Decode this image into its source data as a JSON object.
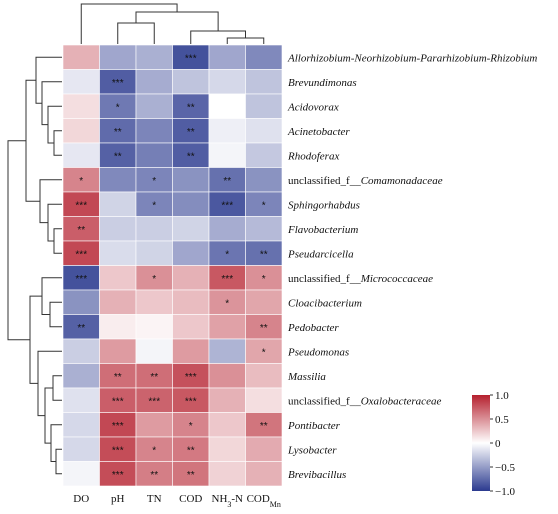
{
  "chart_data": {
    "type": "heatmap",
    "title": "",
    "columns": [
      "DO",
      "pH",
      "TN",
      "COD",
      "NH3-N",
      "CODMn"
    ],
    "column_labels": [
      {
        "main": "DO",
        "sub": "",
        "sup": ""
      },
      {
        "main": "pH",
        "sub": "",
        "sup": ""
      },
      {
        "main": "TN",
        "sub": "",
        "sup": ""
      },
      {
        "main": "COD",
        "sub": "",
        "sup": ""
      },
      {
        "main": "NH",
        "sub": "3",
        "after": "-N"
      },
      {
        "main": "COD",
        "sub": "Mn",
        "after": ""
      }
    ],
    "rows": [
      {
        "name": "Allorhizobium-Neorhizobium-Pararhizobium-Rhizobium",
        "italic": true,
        "prefix": ""
      },
      {
        "name": "Brevundimonas",
        "italic": true,
        "prefix": ""
      },
      {
        "name": "Acidovorax",
        "italic": true,
        "prefix": ""
      },
      {
        "name": "Acinetobacter",
        "italic": true,
        "prefix": ""
      },
      {
        "name": "Rhodoferax",
        "italic": true,
        "prefix": ""
      },
      {
        "name": "Comamonadaceae",
        "italic": true,
        "prefix": "unclassified_f__"
      },
      {
        "name": "Sphingorhabdus",
        "italic": true,
        "prefix": ""
      },
      {
        "name": "Flavobacterium",
        "italic": true,
        "prefix": ""
      },
      {
        "name": "Pseudarcicella",
        "italic": true,
        "prefix": ""
      },
      {
        "name": "Micrococcaceae",
        "italic": true,
        "prefix": "unclassified_f__"
      },
      {
        "name": "Cloacibacterium",
        "italic": true,
        "prefix": ""
      },
      {
        "name": "Pedobacter",
        "italic": true,
        "prefix": ""
      },
      {
        "name": "Pseudomonas",
        "italic": true,
        "prefix": ""
      },
      {
        "name": "Massilia",
        "italic": true,
        "prefix": ""
      },
      {
        "name": "Oxalobacteraceae",
        "italic": true,
        "prefix": "unclassified_f__"
      },
      {
        "name": "Pontibacter",
        "italic": true,
        "prefix": ""
      },
      {
        "name": "Lysobacter",
        "italic": true,
        "prefix": ""
      },
      {
        "name": "Brevibacillus",
        "italic": true,
        "prefix": ""
      }
    ],
    "values": [
      [
        0.35,
        -0.45,
        -0.4,
        -0.88,
        -0.45,
        -0.6
      ],
      [
        -0.12,
        -0.82,
        -0.42,
        -0.3,
        -0.2,
        -0.3
      ],
      [
        0.15,
        -0.68,
        -0.4,
        -0.78,
        0.0,
        -0.3
      ],
      [
        0.18,
        -0.75,
        -0.62,
        -0.82,
        -0.08,
        -0.15
      ],
      [
        -0.12,
        -0.8,
        -0.65,
        -0.82,
        -0.05,
        -0.28
      ],
      [
        0.55,
        -0.6,
        -0.62,
        -0.55,
        -0.72,
        -0.55
      ],
      [
        0.82,
        -0.22,
        -0.62,
        -0.58,
        -0.85,
        -0.62
      ],
      [
        0.72,
        -0.25,
        -0.25,
        -0.22,
        -0.42,
        -0.35
      ],
      [
        0.82,
        -0.18,
        -0.22,
        -0.45,
        -0.7,
        -0.72
      ],
      [
        -0.88,
        0.25,
        0.5,
        0.35,
        0.75,
        0.5
      ],
      [
        -0.55,
        0.35,
        0.25,
        0.3,
        0.48,
        0.4
      ],
      [
        -0.8,
        0.08,
        0.05,
        0.25,
        0.42,
        0.55
      ],
      [
        -0.25,
        0.45,
        -0.05,
        0.45,
        -0.38,
        0.4
      ],
      [
        -0.4,
        0.65,
        0.65,
        0.78,
        0.5,
        0.3
      ],
      [
        -0.15,
        0.72,
        0.7,
        0.75,
        0.35,
        0.15
      ],
      [
        -0.2,
        0.82,
        0.45,
        0.55,
        0.25,
        0.62
      ],
      [
        -0.2,
        0.8,
        0.55,
        0.6,
        0.18,
        0.38
      ],
      [
        -0.05,
        0.8,
        0.58,
        0.62,
        0.2,
        0.35
      ]
    ],
    "significance": [
      [
        "",
        "",
        "",
        "***",
        "",
        ""
      ],
      [
        "",
        "***",
        "",
        "",
        "",
        ""
      ],
      [
        "",
        "*",
        "",
        "**",
        "",
        ""
      ],
      [
        "",
        "**",
        "",
        "**",
        "",
        ""
      ],
      [
        "",
        "**",
        "",
        "**",
        "",
        ""
      ],
      [
        "*",
        "",
        "*",
        "",
        "**",
        ""
      ],
      [
        "***",
        "",
        "*",
        "",
        "***",
        "*"
      ],
      [
        "**",
        "",
        "",
        "",
        "",
        ""
      ],
      [
        "***",
        "",
        "",
        "",
        "*",
        "**"
      ],
      [
        "***",
        "",
        "*",
        "",
        "***",
        "*"
      ],
      [
        "",
        "",
        "",
        "",
        "*",
        ""
      ],
      [
        "**",
        "",
        "",
        "",
        "",
        "**"
      ],
      [
        "",
        "",
        "",
        "",
        "",
        "*"
      ],
      [
        "",
        "**",
        "**",
        "***",
        "",
        ""
      ],
      [
        "",
        "***",
        "***",
        "***",
        "",
        ""
      ],
      [
        "",
        "***",
        "",
        "*",
        "",
        "**"
      ],
      [
        "",
        "***",
        "*",
        "**",
        "",
        ""
      ],
      [
        "",
        "***",
        "**",
        "**",
        "",
        ""
      ]
    ],
    "color_scale": {
      "min": -1.0,
      "max": 1.0,
      "low": "#2b3a8f",
      "mid": "#ffffff",
      "high": "#b5202e"
    },
    "colorbar_ticks": [
      "1.0",
      "0.5",
      "0",
      "−0.5",
      "−1.0"
    ],
    "colorbar_tick_values": [
      1.0,
      0.5,
      0,
      -0.5,
      -1.0
    ],
    "dendrogram_columns": "DO | ((pH, TN), (COD, (NH3-N, CODMn)))",
    "dendrogram_rows": "rows 1-9 cluster vs rows 10-18 cluster"
  }
}
